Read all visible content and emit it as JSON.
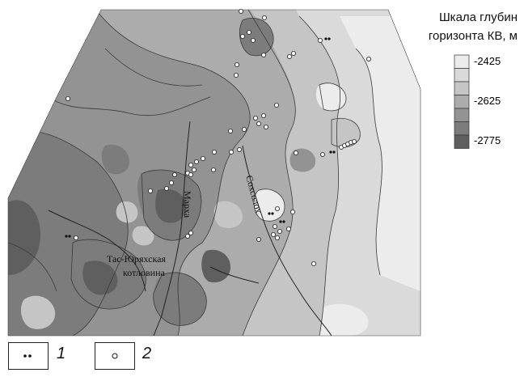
{
  "scale": {
    "title_line1": "Шкала глубин",
    "title_line2": "горизонта КВ, м",
    "labels": [
      "-2425",
      "-2625",
      "-2775"
    ],
    "colors": [
      "#ececec",
      "#dadada",
      "#c5c5c5",
      "#acacac",
      "#939393",
      "#7c7c7c",
      "#5f5f5f"
    ]
  },
  "places": {
    "basin_line1": "Тас-Юряхская",
    "basin_line2": "котловина",
    "river_markha": "Марха",
    "river_sokhsolokh": "Сохсолох"
  },
  "legend": {
    "item1_number": "1",
    "item1_symbol": "paired-dots",
    "item2_number": "2",
    "item2_symbol": "open-circle"
  }
}
